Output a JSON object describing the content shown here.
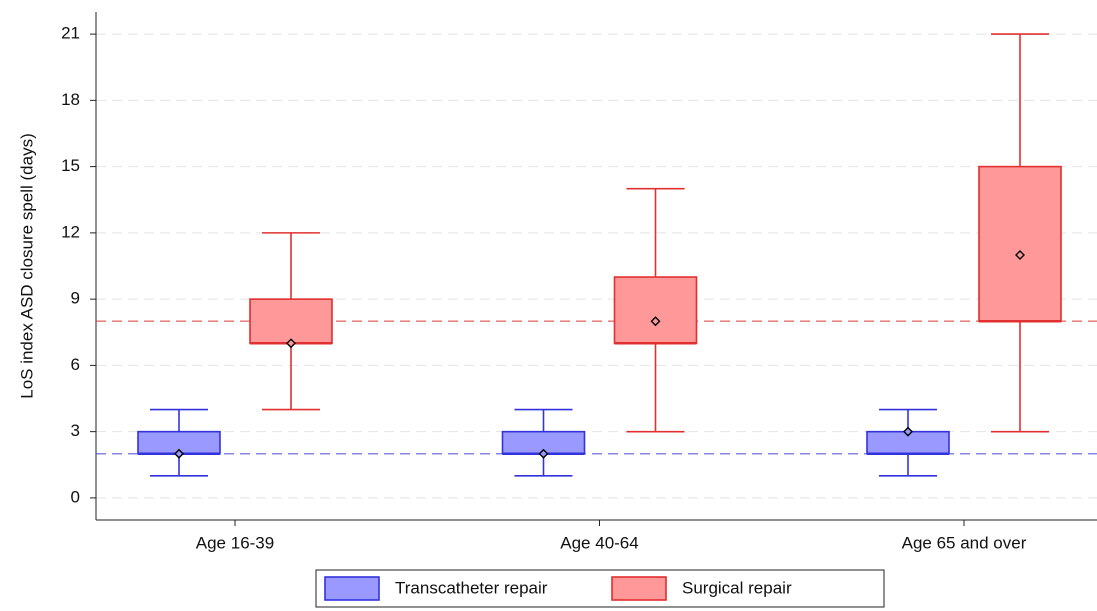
{
  "chart_data": {
    "type": "box",
    "y_label": "LoS index ASD closure spell (days)",
    "categories": [
      "Age 16-39",
      "Age 40-64",
      "Age 65 and over"
    ],
    "ylim": [
      -1,
      22
    ],
    "yticks": [
      0,
      3,
      6,
      9,
      12,
      15,
      18,
      21
    ],
    "grid": true,
    "legend": "bottom",
    "series": [
      {
        "name": "Transcatheter repair",
        "color": "#9999ff",
        "edge": "#3333dd",
        "whisker_low": [
          1,
          1,
          1
        ],
        "q1": [
          2,
          2,
          2
        ],
        "median": [
          2,
          2,
          2
        ],
        "q3": [
          3,
          3,
          3
        ],
        "whisker_high": [
          4,
          4,
          4
        ],
        "mean": [
          2,
          2,
          3
        ],
        "reference": 2
      },
      {
        "name": "Surgical repair",
        "color": "#ff9999",
        "edge": "#e03030",
        "whisker_low": [
          4,
          3,
          3
        ],
        "q1": [
          7,
          7,
          8
        ],
        "median": [
          7,
          7,
          8
        ],
        "q3": [
          9,
          10,
          15
        ],
        "whisker_high": [
          12,
          14,
          21
        ],
        "mean": [
          7,
          8,
          11
        ],
        "reference": 8
      }
    ]
  }
}
